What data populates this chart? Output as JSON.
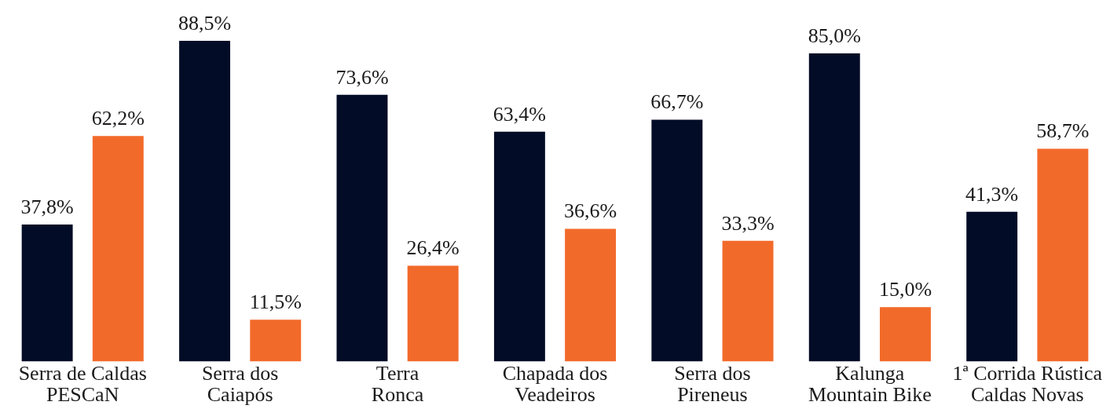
{
  "chart_data": {
    "type": "bar",
    "categories": [
      "Serra de Caldas\nPESCaN",
      "Serra dos\nCaiapós",
      "Terra\nRonca",
      "Chapada dos\nVeadeiros",
      "Serra dos\nPireneus",
      "Kalunga\nMountain Bike",
      "1ª Corrida Rústica\nCaldas Novas"
    ],
    "series": [
      {
        "color": "#020c26",
        "values": [
          37.8,
          88.5,
          73.6,
          63.4,
          66.7,
          85.0,
          41.3
        ],
        "value_labels": [
          "37,8%",
          "88,5%",
          "73,6%",
          "63,4%",
          "66,7%",
          "85,0%",
          "41,3%"
        ]
      },
      {
        "color": "#f26a2a",
        "values": [
          62.2,
          11.5,
          26.4,
          36.6,
          33.3,
          15.0,
          58.7
        ],
        "value_labels": [
          "62,2%",
          "11,5%",
          "26,4%",
          "36,6%",
          "33,3%",
          "15,0%",
          "58,7%"
        ]
      }
    ],
    "grid": false,
    "legend": false,
    "tick_labels": "x"
  }
}
